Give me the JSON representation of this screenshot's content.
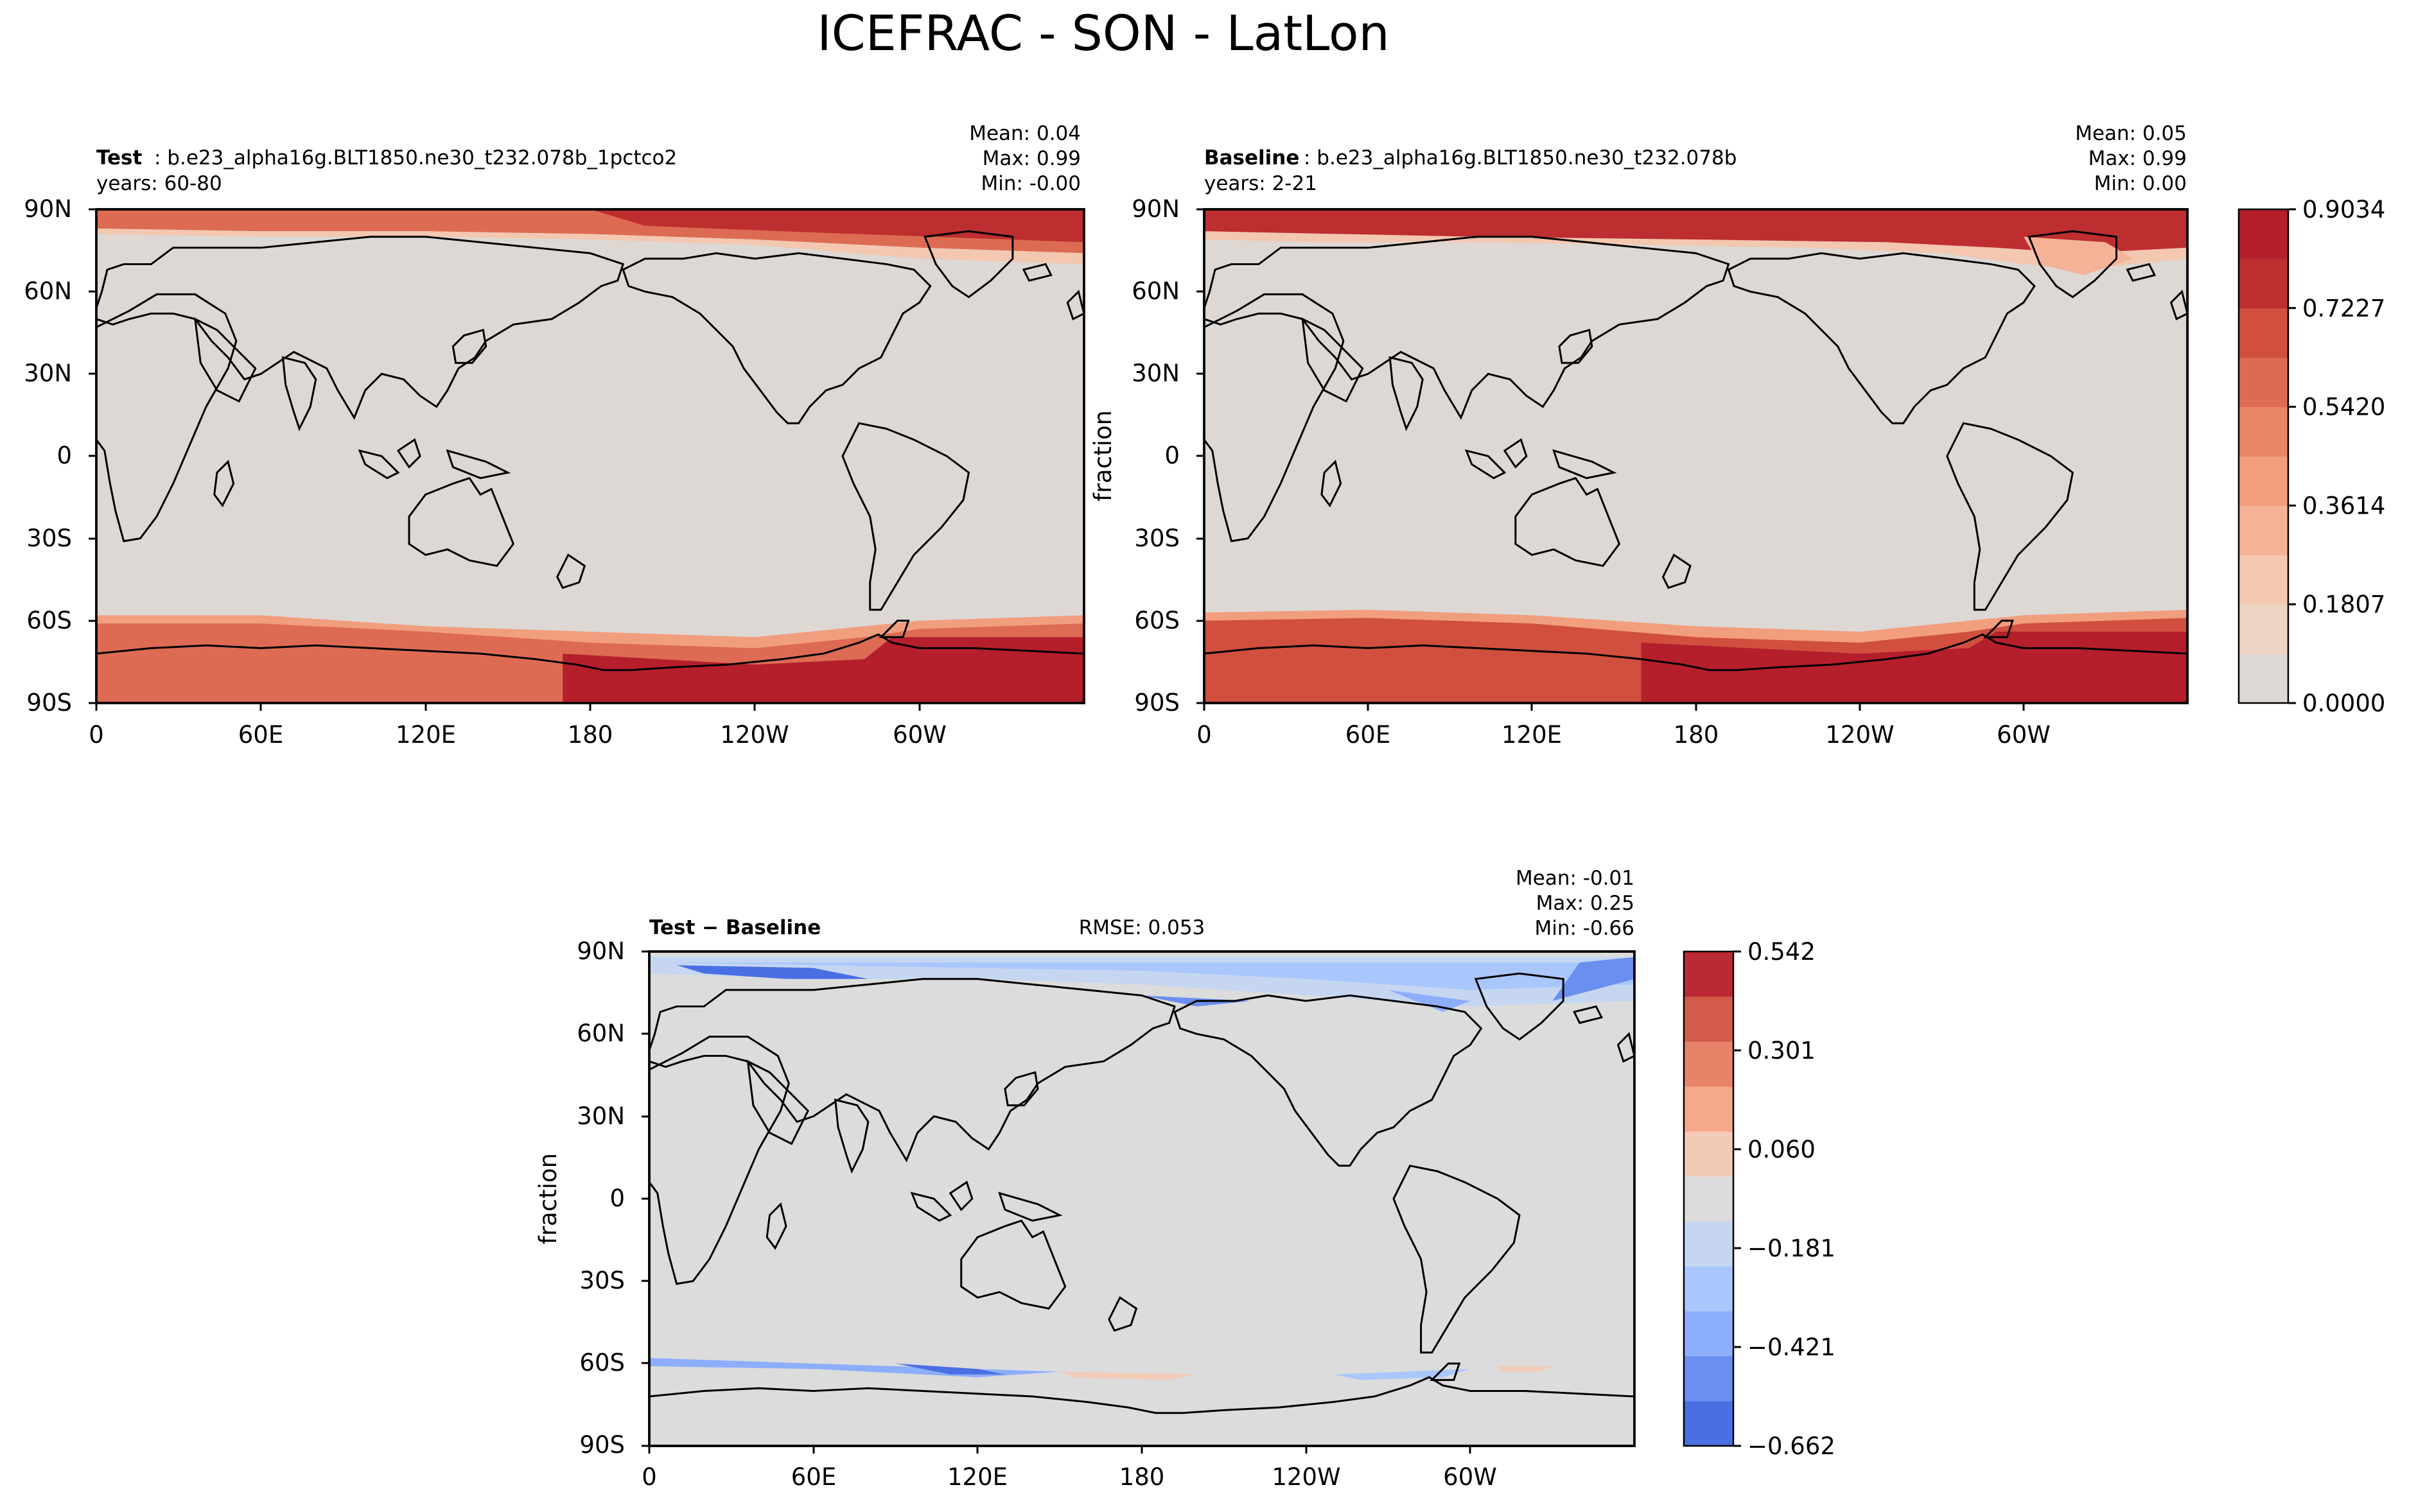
{
  "figure": {
    "title": "ICEFRAC - SON - LatLon"
  },
  "panels": [
    {
      "id": "test",
      "label_bold": "Test",
      "label_rest": ": b.e23_alpha16g.BLT1850.ne30_t232.078b_1pctco2",
      "years": "years: 60-80",
      "stats": {
        "mean": "Mean:  0.04",
        "max": "Max:  0.99",
        "min": "Min: -0.00"
      },
      "ylabel": ""
    },
    {
      "id": "baseline",
      "label_bold": "Baseline",
      "label_rest": ": b.e23_alpha16g.BLT1850.ne30_t232.078b",
      "years": "years: 2-21",
      "stats": {
        "mean": "Mean:  0.05",
        "max": "Max:  0.99",
        "min": "Min:  0.00"
      },
      "ylabel": "fraction"
    },
    {
      "id": "diff",
      "label_bold": "Test − Baseline",
      "label_rest": "",
      "years": "",
      "rmse": "RMSE: 0.053",
      "stats": {
        "mean": "Mean: -0.01",
        "max": "Max:  0.25",
        "min": "Min: -0.66"
      },
      "ylabel": "fraction"
    }
  ],
  "colorbars": {
    "main": {
      "ticks": [
        "0.0000",
        "0.1807",
        "0.3614",
        "0.5420",
        "0.7227",
        "0.9034"
      ],
      "colors": [
        "#ddd8d4",
        "#ecd3c5",
        "#f3c7b0",
        "#f4b296",
        "#f19e7f",
        "#ea8568",
        "#dd6b53",
        "#d04f3f",
        "#bd2e30",
        "#b41f2b"
      ]
    },
    "diff": {
      "ticks": [
        "−0.662",
        "−0.421",
        "−0.181",
        "0.060",
        "0.301",
        "0.542"
      ],
      "colors": [
        "#4a6fe3",
        "#6b8ff0",
        "#8daefc",
        "#aac7fd",
        "#c6d6f1",
        "#dcdcdc",
        "#f2cbb7",
        "#f6a989",
        "#e8836a",
        "#d35b4c",
        "#bb2a34"
      ]
    }
  },
  "axes": {
    "lat_ticks": [
      "90N",
      "60N",
      "30N",
      "0",
      "30S",
      "60S",
      "90S"
    ],
    "lon_ticks": [
      "0",
      "60E",
      "120E",
      "180",
      "120W",
      "60W"
    ]
  },
  "chart_data": [
    {
      "type": "heatmap",
      "title": "Test: b.e23_alpha16g.BLT1850.ne30_t232.078b_1pctco2",
      "xlabel": "",
      "ylabel": "",
      "x_ticks": [
        "0",
        "60E",
        "120E",
        "180",
        "120W",
        "60W"
      ],
      "y_ticks": [
        "90N",
        "60N",
        "30N",
        "0",
        "30S",
        "60S",
        "90S"
      ],
      "xlim": [
        0,
        360
      ],
      "ylim": [
        -90,
        90
      ],
      "stats": {
        "mean": 0.04,
        "max": 0.99,
        "min": -0.0
      },
      "colorbar_range": [
        0.0,
        0.9034
      ]
    },
    {
      "type": "heatmap",
      "title": "Baseline: b.e23_alpha16g.BLT1850.ne30_t232.078b",
      "xlabel": "",
      "ylabel": "fraction",
      "x_ticks": [
        "0",
        "60E",
        "120E",
        "180",
        "120W",
        "60W"
      ],
      "y_ticks": [
        "90N",
        "60N",
        "30N",
        "0",
        "30S",
        "60S",
        "90S"
      ],
      "xlim": [
        0,
        360
      ],
      "ylim": [
        -90,
        90
      ],
      "stats": {
        "mean": 0.05,
        "max": 0.99,
        "min": 0.0
      },
      "colorbar_range": [
        0.0,
        0.9034
      ]
    },
    {
      "type": "heatmap",
      "title": "Test − Baseline",
      "xlabel": "",
      "ylabel": "fraction",
      "x_ticks": [
        "0",
        "60E",
        "120E",
        "180",
        "120W",
        "60W"
      ],
      "y_ticks": [
        "90N",
        "60N",
        "30N",
        "0",
        "30S",
        "60S",
        "90S"
      ],
      "xlim": [
        0,
        360
      ],
      "ylim": [
        -90,
        90
      ],
      "stats": {
        "mean": -0.01,
        "max": 0.25,
        "min": -0.66,
        "rmse": 0.053
      },
      "colorbar_range": [
        -0.662,
        0.542
      ]
    }
  ]
}
